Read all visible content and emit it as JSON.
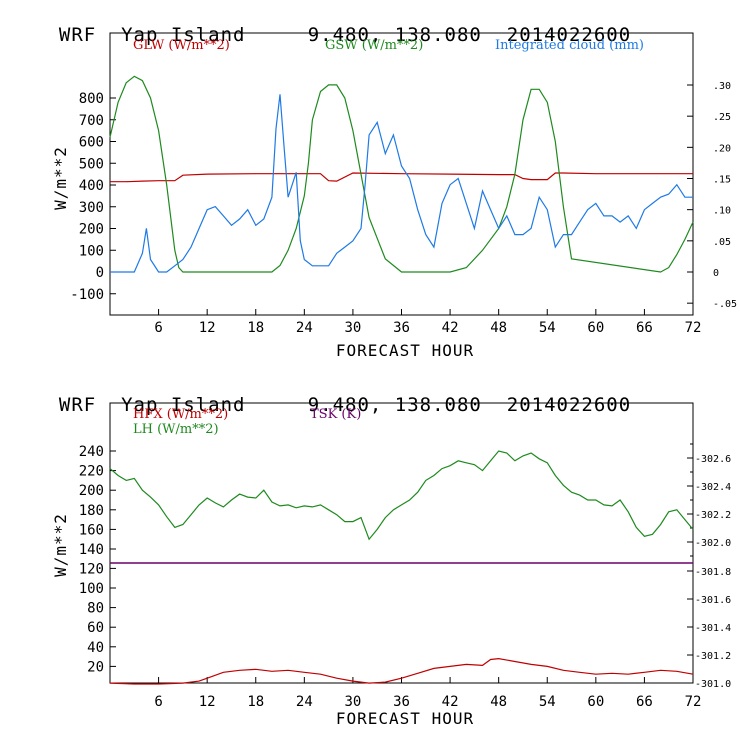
{
  "header1": {
    "model": "WRF",
    "place": "Yap Island",
    "coords": "9.480, 138.080",
    "date": "2014022600"
  },
  "header2": {
    "model": "WRF",
    "place": "Yap Island",
    "coords": "9.480, 138.080",
    "date": "2014022600"
  },
  "colors": {
    "red": "#c00000",
    "green": "#1e8a1e",
    "blue": "#1e7ae6",
    "purple": "#6a006a"
  },
  "chart_data": [
    {
      "type": "line",
      "xlabel": "FORECAST HOUR",
      "ylabel": "W/m**2",
      "xlim": [
        0,
        72
      ],
      "ylim": [
        -180,
        1000
      ],
      "y2lim": [
        -0.06,
        0.33
      ],
      "x_ticks": [
        6,
        12,
        18,
        24,
        30,
        36,
        42,
        48,
        54,
        60,
        66,
        72
      ],
      "y_ticks": [
        -100,
        0,
        100,
        200,
        300,
        400,
        500,
        600,
        700,
        800
      ],
      "y2_ticks": [
        -0.05,
        0,
        0.05,
        0.1,
        0.15,
        0.2,
        0.25,
        0.3
      ],
      "y2_tick_labels": [
        "-.05",
        "0",
        ".05",
        ".10",
        ".15",
        ".20",
        ".25",
        ".30"
      ],
      "series": [
        {
          "name": "GLW (W/m**2)",
          "axis": "left",
          "color": "#c00000",
          "x": [
            0,
            2,
            4,
            6,
            7,
            8,
            9,
            12,
            18,
            24,
            26,
            27,
            28,
            30,
            36,
            42,
            48,
            50,
            51,
            52,
            54,
            55,
            56,
            60,
            66,
            72
          ],
          "y": [
            415,
            415,
            418,
            420,
            420,
            420,
            445,
            450,
            452,
            452,
            452,
            420,
            418,
            455,
            452,
            450,
            448,
            448,
            430,
            425,
            425,
            455,
            455,
            452,
            452,
            452
          ]
        },
        {
          "name": "GSW (W/m**2)",
          "axis": "left",
          "color": "#1e8a1e",
          "x": [
            0,
            1,
            2,
            3,
            4,
            5,
            6,
            7,
            8,
            8.5,
            9,
            20,
            21,
            22,
            23,
            24,
            24.5,
            25,
            26,
            27,
            28,
            29,
            30,
            31,
            32,
            34,
            36,
            42,
            44,
            46,
            48,
            49,
            50,
            51,
            52,
            53,
            54,
            55,
            56,
            57,
            68,
            69,
            70,
            71,
            72
          ],
          "y": [
            620,
            780,
            870,
            900,
            880,
            800,
            650,
            400,
            100,
            20,
            0,
            0,
            30,
            100,
            200,
            350,
            500,
            700,
            830,
            860,
            860,
            800,
            650,
            450,
            250,
            60,
            0,
            0,
            20,
            100,
            200,
            300,
            450,
            700,
            840,
            840,
            780,
            600,
            300,
            60,
            0,
            20,
            80,
            150,
            230
          ]
        },
        {
          "name": "Integrated cloud (mm)",
          "axis": "right",
          "color": "#1e7ae6",
          "x": [
            0,
            2,
            3,
            4,
            4.5,
            5,
            6,
            7,
            8,
            9,
            10,
            11,
            12,
            13,
            14,
            15,
            16,
            17,
            18,
            19,
            20,
            20.5,
            21,
            21.5,
            22,
            22.5,
            23,
            23.5,
            24,
            25,
            26,
            27,
            28,
            29,
            30,
            31,
            31.5,
            32,
            33,
            34,
            35,
            36,
            37,
            38,
            39,
            40,
            41,
            42,
            43,
            44,
            45,
            46,
            47,
            48,
            49,
            50,
            51,
            52,
            53,
            54,
            55,
            56,
            57,
            58,
            59,
            60,
            61,
            62,
            63,
            64,
            65,
            66,
            67,
            68,
            69,
            70,
            71,
            72
          ],
          "y": [
            0,
            0,
            0,
            0.03,
            0.07,
            0.02,
            0,
            0,
            0.01,
            0.02,
            0.04,
            0.07,
            0.1,
            0.105,
            0.09,
            0.075,
            0.085,
            0.1,
            0.075,
            0.085,
            0.12,
            0.23,
            0.285,
            0.2,
            0.12,
            0.14,
            0.16,
            0.05,
            0.02,
            0.01,
            0.01,
            0.01,
            0.03,
            0.04,
            0.05,
            0.07,
            0.14,
            0.22,
            0.24,
            0.19,
            0.22,
            0.17,
            0.15,
            0.1,
            0.06,
            0.04,
            0.11,
            0.14,
            0.15,
            0.11,
            0.07,
            0.13,
            0.1,
            0.07,
            0.09,
            0.06,
            0.06,
            0.07,
            0.12,
            0.1,
            0.04,
            0.06,
            0.06,
            0.08,
            0.1,
            0.11,
            0.09,
            0.09,
            0.08,
            0.09,
            0.07,
            0.1,
            0.11,
            0.12,
            0.125,
            0.14,
            0.12,
            0.12
          ]
        }
      ]
    },
    {
      "type": "line",
      "xlabel": "FORECAST HOUR",
      "ylabel": "W/m**2",
      "xlim": [
        0,
        72
      ],
      "y_ticks_upper": [
        140,
        160,
        180,
        200,
        220,
        240
      ],
      "y_ticks_lower": [
        20,
        40,
        60,
        80,
        100,
        120
      ],
      "upper_ylim": [
        130,
        265
      ],
      "lower_ylim": [
        0,
        125
      ],
      "x_ticks": [
        6,
        12,
        18,
        24,
        30,
        36,
        42,
        48,
        54,
        60,
        66,
        72
      ],
      "y2_ticks": [
        302.0,
        302.2,
        302.4,
        302.6
      ],
      "y2_ticks_lower": [
        301.0,
        301.2,
        301.4,
        301.6,
        301.8
      ],
      "y2_tick_labels": [
        "302.0",
        "302.2",
        "302.4",
        "302.6"
      ],
      "y2_tick_labels_lower": [
        "301.0",
        "301.2",
        "301.4",
        "301.6",
        "301.8"
      ],
      "series": [
        {
          "name": "HFX (W/m**2)",
          "color": "#c00000",
          "panel": "lower",
          "x": [
            0,
            3,
            6,
            9,
            11,
            12,
            14,
            16,
            18,
            20,
            22,
            24,
            26,
            28,
            30,
            32,
            34,
            36,
            38,
            40,
            42,
            44,
            46,
            47,
            48,
            50,
            52,
            54,
            56,
            58,
            60,
            62,
            64,
            66,
            68,
            70,
            72
          ],
          "y": [
            3,
            2,
            2,
            3,
            5,
            8,
            14,
            16,
            17,
            15,
            16,
            14,
            12,
            8,
            5,
            3,
            4,
            8,
            13,
            18,
            20,
            22,
            21,
            27,
            28,
            25,
            22,
            20,
            16,
            14,
            12,
            13,
            12,
            14,
            16,
            15,
            12
          ]
        },
        {
          "name": "LH (W/m**2)",
          "color": "#1e8a1e",
          "panel": "upper",
          "x": [
            0,
            1,
            2,
            3,
            4,
            5,
            6,
            7,
            8,
            9,
            10,
            11,
            12,
            13,
            14,
            15,
            16,
            17,
            18,
            19,
            20,
            21,
            22,
            23,
            24,
            25,
            26,
            27,
            28,
            29,
            30,
            31,
            32,
            33,
            34,
            35,
            36,
            37,
            38,
            39,
            40,
            41,
            42,
            43,
            44,
            45,
            46,
            47,
            48,
            49,
            50,
            51,
            52,
            53,
            54,
            55,
            56,
            57,
            58,
            59,
            60,
            61,
            62,
            63,
            64,
            65,
            66,
            67,
            68,
            69,
            70,
            71,
            72
          ],
          "y": [
            222,
            215,
            210,
            212,
            200,
            193,
            185,
            173,
            162,
            165,
            175,
            185,
            192,
            187,
            183,
            190,
            196,
            193,
            192,
            200,
            188,
            184,
            185,
            182,
            184,
            183,
            185,
            180,
            175,
            168,
            168,
            172,
            150,
            160,
            172,
            180,
            185,
            190,
            198,
            210,
            215,
            222,
            225,
            230,
            228,
            226,
            220,
            230,
            240,
            238,
            230,
            235,
            238,
            232,
            228,
            215,
            205,
            198,
            195,
            190,
            190,
            185,
            184,
            190,
            178,
            162,
            153,
            155,
            165,
            178,
            180,
            170,
            160
          ]
        },
        {
          "name": "TSK (K)",
          "color": "#6a006a",
          "panel": "none",
          "x": [],
          "y": []
        }
      ]
    }
  ]
}
